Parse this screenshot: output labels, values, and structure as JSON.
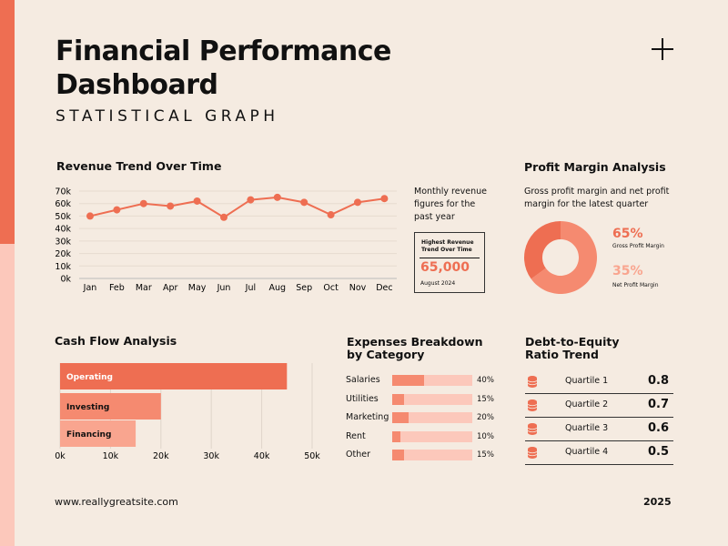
{
  "header": {
    "title_line1": "Financial Performance",
    "title_line2": "Dashboard",
    "subtitle": "STATISTICAL GRAPH",
    "plus_icon": "plus-icon"
  },
  "colors": {
    "accent": "#ee6e52",
    "mid": "#f58a70",
    "light": "#f9a58f",
    "pale": "#fcc8bb",
    "background": "#f5ebe1"
  },
  "chart_data": [
    {
      "type": "line",
      "title": "Revenue Trend Over Time",
      "categories": [
        "Jan",
        "Feb",
        "Mar",
        "Apr",
        "May",
        "Jun",
        "Jul",
        "Aug",
        "Sep",
        "Oct",
        "Nov",
        "Dec"
      ],
      "values": [
        50000,
        55000,
        60000,
        58000,
        62000,
        49000,
        63000,
        65000,
        61000,
        51000,
        61000,
        64000
      ],
      "yticks": [
        "0k",
        "10k",
        "20k",
        "30k",
        "40k",
        "50k",
        "60k",
        "70k"
      ],
      "ylim": [
        0,
        70000
      ],
      "grid": true
    },
    {
      "type": "bar",
      "orientation": "horizontal",
      "title": "Cash Flow Analysis",
      "categories": [
        "Operating",
        "Investing",
        "Financing"
      ],
      "values": [
        45000,
        20000,
        15000
      ],
      "xticks": [
        "0k",
        "10k",
        "20k",
        "30k",
        "40k",
        "50k"
      ],
      "xlim": [
        0,
        50000
      ],
      "grid": true
    },
    {
      "type": "pie",
      "title": "Profit Margin Analysis",
      "donut": true,
      "slices": [
        {
          "label": "Gross Profit Margin",
          "value": 65,
          "display": "65%"
        },
        {
          "label": "Net Profit Margin",
          "value": 35,
          "display": "35%"
        }
      ]
    },
    {
      "type": "bar",
      "orientation": "horizontal",
      "title": "Expenses Breakdown by Category",
      "categories": [
        "Salaries",
        "Utilities",
        "Marketing",
        "Rent",
        "Other"
      ],
      "values": [
        40,
        15,
        20,
        10,
        15
      ],
      "labels": [
        "40%",
        "15%",
        "20%",
        "10%",
        "15%"
      ]
    },
    {
      "type": "table",
      "title": "Debt-to-Equity Ratio Trend",
      "rows": [
        {
          "label": "Quartile 1",
          "value": "0.8"
        },
        {
          "label": "Quartile 2",
          "value": "0.7"
        },
        {
          "label": "Quartile 3",
          "value": "0.6"
        },
        {
          "label": "Quartile 4",
          "value": "0.5"
        }
      ],
      "icon": "database-icon"
    }
  ],
  "revenue_note": {
    "text": "Monthly revenue figures for the past year",
    "box_title": "Highest Revenue Trend Over Time",
    "box_value": "65,000",
    "box_date": "August 2024"
  },
  "profit": {
    "description": "Gross profit margin and net profit margin for the latest quarter"
  },
  "expenses_title": {
    "line1": "Expenses Breakdown",
    "line2": "by Category"
  },
  "debt_title": {
    "line1": "Debt-to-Equity",
    "line2": "Ratio Trend"
  },
  "footer": {
    "website": "www.reallygreatsite.com",
    "year": "2025"
  }
}
